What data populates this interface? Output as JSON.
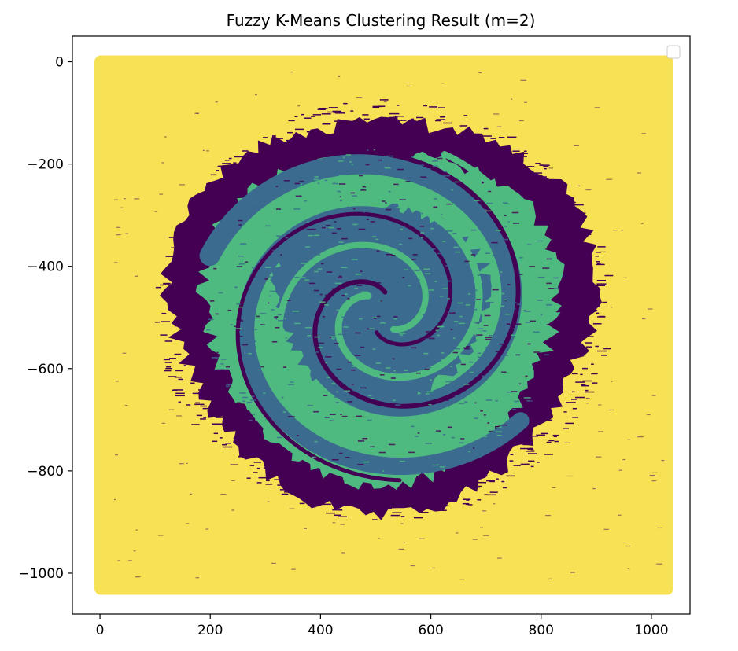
{
  "chart_data": {
    "type": "scatter",
    "title": "Fuzzy K-Means Clustering Result (m=2)",
    "xlabel": "",
    "ylabel": "",
    "xlim": [
      -50,
      1070
    ],
    "ylim": [
      -1080,
      50
    ],
    "x_ticks": [
      0,
      200,
      400,
      600,
      800,
      1000
    ],
    "y_ticks": [
      0,
      -200,
      -400,
      -600,
      -800,
      -1000
    ],
    "x_tick_labels": [
      "0",
      "200",
      "400",
      "600",
      "800",
      "1000"
    ],
    "y_tick_labels": [
      "0",
      "−200",
      "−400",
      "−600",
      "−800",
      "−1000"
    ],
    "grid": false,
    "legend": {
      "placement": "top-right",
      "entries": []
    },
    "colors": {
      "background_cluster": "#f7e155",
      "outer_ring_cluster": "#440154",
      "arm_cluster": "#4fba80",
      "core_cluster": "#3b6b8f"
    },
    "clusters": [
      {
        "label": "background",
        "color_key": "background_cluster",
        "extent": {
          "x": [
            0,
            1030
          ],
          "y": [
            -1030,
            0
          ]
        }
      },
      {
        "label": "outer ring",
        "color_key": "outer_ring_cluster",
        "center": [
          510,
          -485
        ],
        "radius": 385
      },
      {
        "label": "spiral arms",
        "color_key": "arm_cluster",
        "center": [
          510,
          -490
        ],
        "radius": 320
      },
      {
        "label": "core",
        "color_key": "core_cluster",
        "center": [
          510,
          -470
        ],
        "radius": 190
      }
    ]
  }
}
